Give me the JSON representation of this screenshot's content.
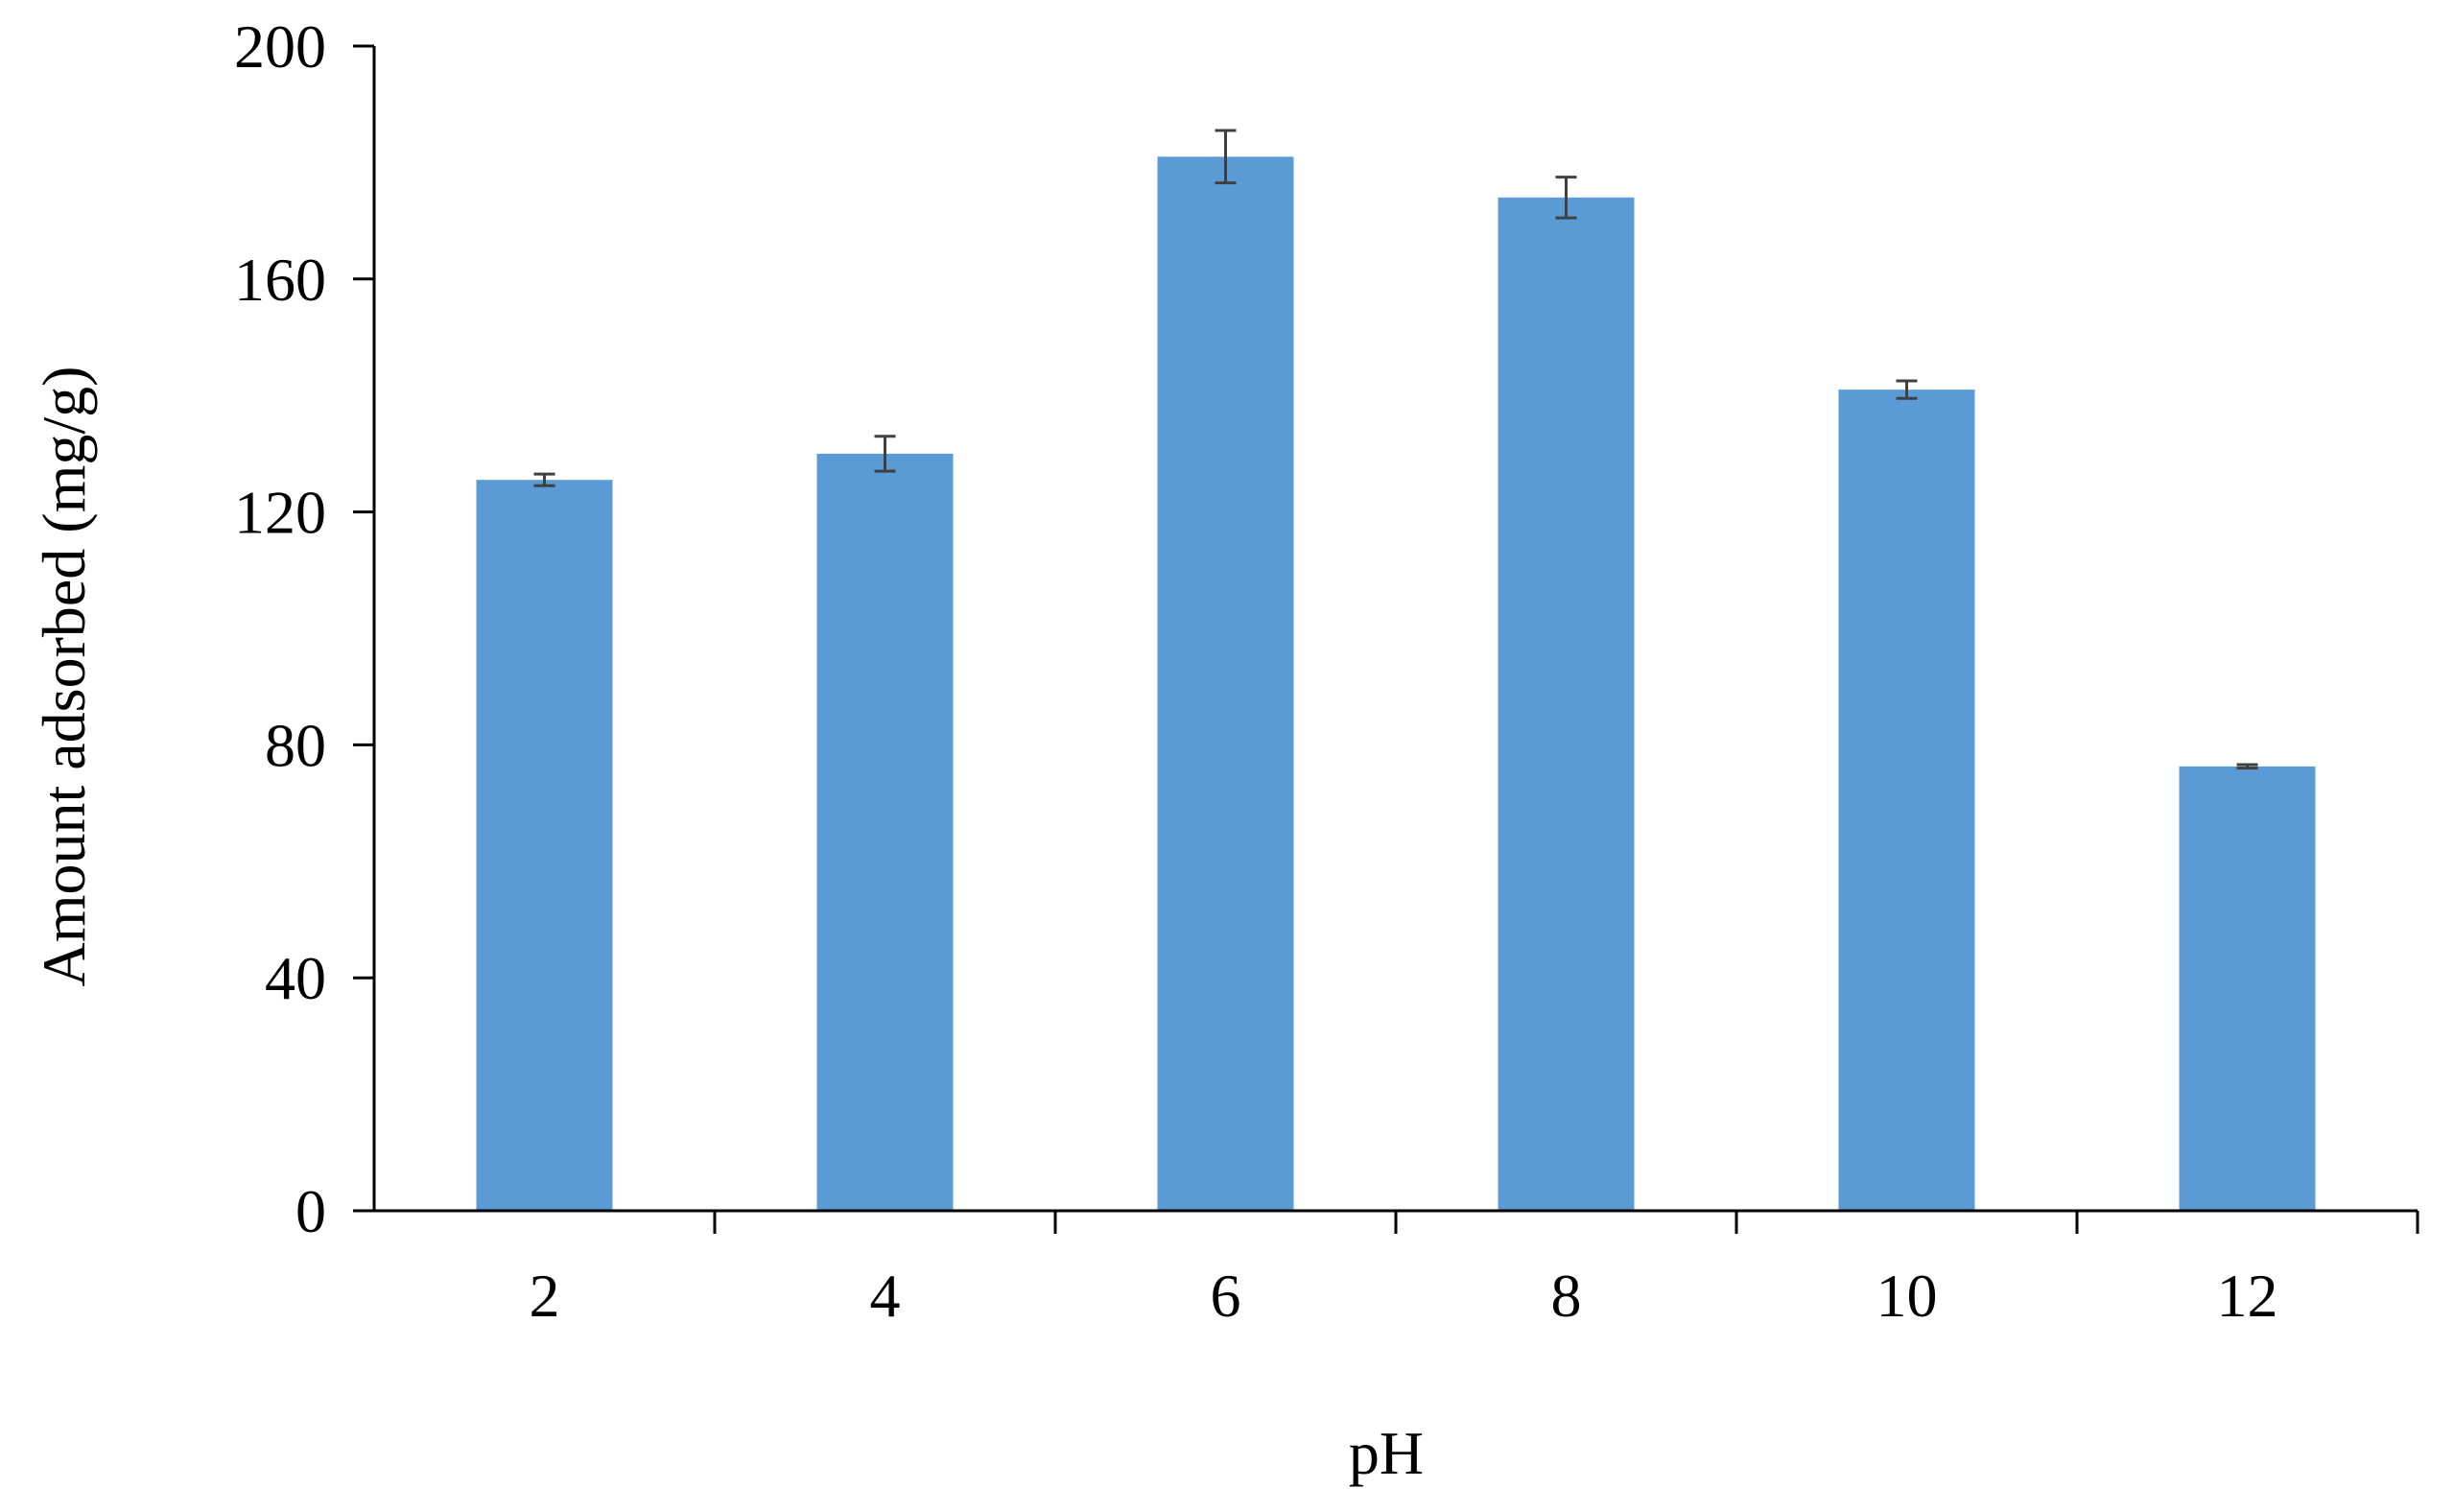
{
  "chart_data": {
    "type": "bar",
    "title": "",
    "xlabel": "pH",
    "ylabel": "Amount adsorbed (mg/g)",
    "categories": [
      "2",
      "4",
      "6",
      "8",
      "10",
      "12"
    ],
    "series": [
      {
        "values": [
          125.5,
          130,
          181,
          174,
          141,
          76.3
        ],
        "error": [
          1,
          3,
          4.5,
          3.5,
          1.5,
          0.3
        ]
      }
    ],
    "ylim": [
      0,
      200
    ],
    "yticks": [
      "0",
      "40",
      "80",
      "120",
      "160",
      "200"
    ],
    "ytick_values": [
      0,
      40,
      80,
      120,
      160,
      200
    ],
    "grid": false,
    "legend": "none",
    "colors": {
      "bar": "#5b9bd5",
      "axis": "#000000",
      "error_bar": "#404040"
    }
  }
}
